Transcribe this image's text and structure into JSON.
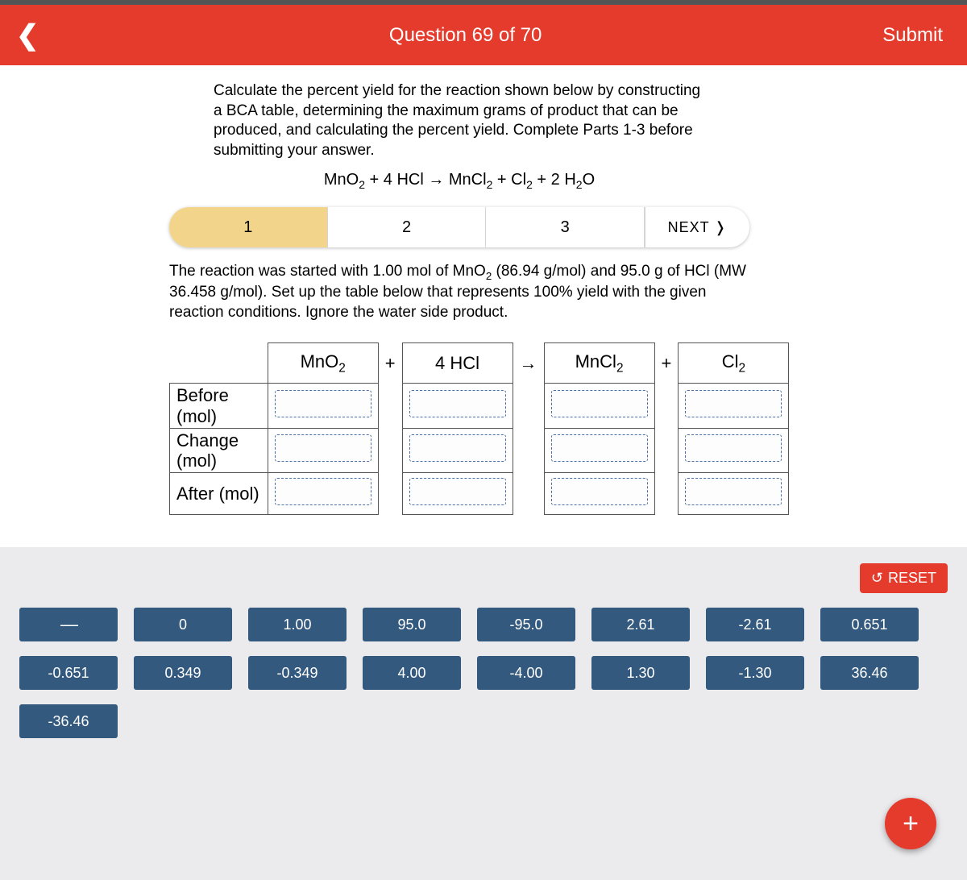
{
  "header": {
    "title": "Question 69 of 70",
    "submit": "Submit"
  },
  "instructions": {
    "main": "Calculate the percent yield for the reaction shown below by constructing a BCA table, determining the maximum grams of product that can be produced, and calculating the percent yield. Complete Parts 1-3 before submitting your answer.",
    "equation_html": "MnO<sub>2</sub> + 4 HCl → MnCl<sub>2</sub> + Cl<sub>2</sub> + 2 H<sub>2</sub>O",
    "sub": "The reaction was started with 1.00 mol of MnO₂ (86.94 g/mol) and 95.0 g of HCl (MW 36.458 g/mol). Set up the table below that represents 100% yield with the given reaction conditions. Ignore the water side product."
  },
  "steps": {
    "s1": "1",
    "s2": "2",
    "s3": "3",
    "next": "NEXT ❭"
  },
  "table": {
    "rows": {
      "before": "Before (mol)",
      "change": "Change (mol)",
      "after": "After (mol)"
    },
    "cols": {
      "c1": "MnO₂",
      "op1": "+",
      "c2": "4 HCl",
      "op2": "→",
      "c3": "MnCl₂",
      "op3": "+",
      "c4": "Cl₂"
    }
  },
  "reset": "RESET",
  "tiles": [
    "",
    "0",
    "1.00",
    "95.0",
    "-95.0",
    "2.61",
    "-2.61",
    "0.651",
    "-0.651",
    "0.349",
    "-0.349",
    "4.00",
    "-4.00",
    "1.30",
    "-1.30",
    "36.46",
    "-36.46"
  ],
  "colors": {
    "accent": "#e53b2d",
    "tile": "#33597e",
    "step_active": "#f2d58a",
    "background": "#ebebed"
  }
}
